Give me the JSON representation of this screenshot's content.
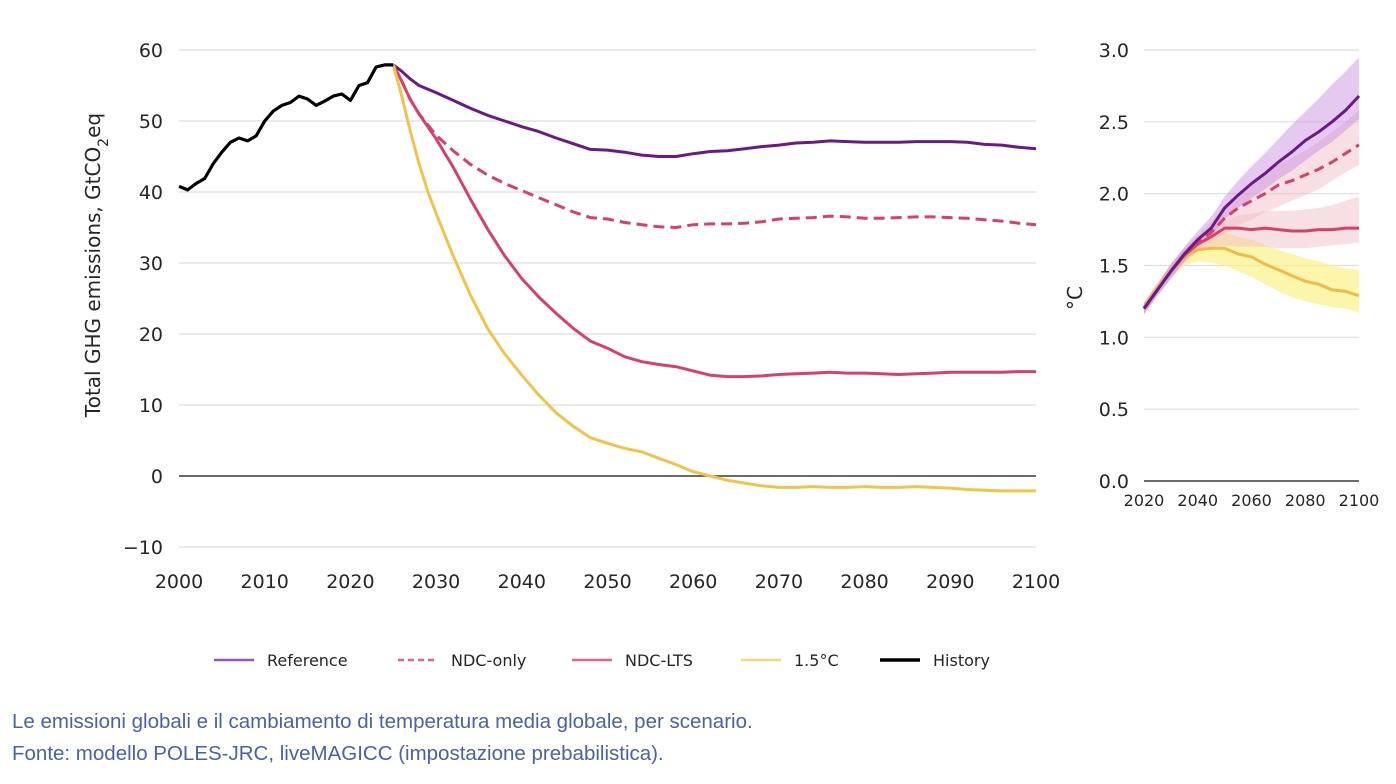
{
  "chart_data": [
    {
      "type": "line",
      "title": "",
      "xlabel": "",
      "ylabel": "Total GHG emissions, GtCO2eq",
      "ylabel_parts": {
        "pre": "Total GHG emissions, GtCO",
        "sub": "2",
        "post": "eq"
      },
      "xlim": [
        2000,
        2100
      ],
      "ylim": [
        -10,
        60
      ],
      "xticks": [
        2000,
        2010,
        2020,
        2030,
        2040,
        2050,
        2060,
        2070,
        2080,
        2090,
        2100
      ],
      "xtick_labels": [
        "2000",
        "2010",
        "2020",
        "2030",
        "2040",
        "2050",
        "2060",
        "2070",
        "2080",
        "2090",
        "2100"
      ],
      "yticks": [
        -10,
        0,
        10,
        20,
        30,
        40,
        50,
        60
      ],
      "ytick_labels": [
        "−10",
        "0",
        "10",
        "20",
        "30",
        "40",
        "50",
        "60"
      ],
      "grid": "horizontal",
      "zero_line": true,
      "series": [
        {
          "name": "History",
          "color": "#000000",
          "style": "solid",
          "x": [
            2000,
            2001,
            2002,
            2003,
            2004,
            2005,
            2006,
            2007,
            2008,
            2009,
            2010,
            2011,
            2012,
            2013,
            2014,
            2015,
            2016,
            2017,
            2018,
            2019,
            2020,
            2021,
            2022,
            2023,
            2024,
            2025
          ],
          "y": [
            40.8,
            40.3,
            41.2,
            41.9,
            44.0,
            45.6,
            47.0,
            47.6,
            47.2,
            47.9,
            50.0,
            51.4,
            52.2,
            52.6,
            53.5,
            53.1,
            52.2,
            52.8,
            53.5,
            53.8,
            52.9,
            55.0,
            55.4,
            57.6,
            57.9,
            57.9
          ]
        },
        {
          "name": "Reference",
          "color": "#6a1a86",
          "style": "solid",
          "x": [
            2025,
            2026,
            2027,
            2028,
            2030,
            2032,
            2034,
            2036,
            2038,
            2040,
            2042,
            2044,
            2046,
            2048,
            2050,
            2052,
            2054,
            2056,
            2058,
            2060,
            2062,
            2064,
            2066,
            2068,
            2070,
            2072,
            2074,
            2076,
            2078,
            2080,
            2082,
            2084,
            2086,
            2088,
            2090,
            2092,
            2094,
            2096,
            2098,
            2100
          ],
          "y": [
            57.9,
            57.0,
            55.9,
            55.0,
            54.0,
            52.9,
            51.8,
            50.8,
            50.0,
            49.2,
            48.5,
            47.6,
            46.8,
            46.0,
            45.9,
            45.6,
            45.2,
            45.0,
            45.0,
            45.4,
            45.7,
            45.8,
            46.1,
            46.4,
            46.6,
            46.9,
            47.0,
            47.2,
            47.1,
            47.0,
            47.0,
            47.0,
            47.1,
            47.1,
            47.1,
            47.0,
            46.7,
            46.6,
            46.3,
            46.1
          ]
        },
        {
          "name": "NDC-only",
          "color": "#d6416c",
          "style": "dashed",
          "x": [
            2025,
            2026,
            2027,
            2028,
            2030,
            2032,
            2034,
            2036,
            2038,
            2040,
            2042,
            2044,
            2046,
            2048,
            2050,
            2052,
            2054,
            2056,
            2058,
            2060,
            2062,
            2064,
            2066,
            2068,
            2070,
            2072,
            2074,
            2076,
            2078,
            2080,
            2082,
            2084,
            2086,
            2088,
            2090,
            2092,
            2094,
            2096,
            2098,
            2100
          ],
          "y": [
            57.9,
            55.6,
            53.0,
            51.0,
            48.0,
            45.8,
            43.9,
            42.4,
            41.2,
            40.2,
            39.2,
            38.2,
            37.2,
            36.4,
            36.2,
            35.7,
            35.4,
            35.1,
            35.0,
            35.4,
            35.5,
            35.5,
            35.6,
            35.8,
            36.2,
            36.3,
            36.4,
            36.6,
            36.5,
            36.3,
            36.3,
            36.4,
            36.5,
            36.5,
            36.4,
            36.3,
            36.1,
            35.9,
            35.6,
            35.4
          ]
        },
        {
          "name": "NDC-LTS",
          "color": "#d6416c",
          "style": "solid",
          "x": [
            2025,
            2026,
            2027,
            2028,
            2030,
            2032,
            2034,
            2036,
            2038,
            2040,
            2042,
            2044,
            2046,
            2048,
            2050,
            2052,
            2054,
            2056,
            2058,
            2060,
            2062,
            2064,
            2066,
            2068,
            2070,
            2072,
            2074,
            2076,
            2078,
            2080,
            2082,
            2084,
            2086,
            2088,
            2090,
            2092,
            2094,
            2096,
            2098,
            2100
          ],
          "y": [
            57.9,
            55.6,
            53.0,
            51.0,
            47.5,
            43.5,
            39.0,
            34.8,
            31.0,
            27.8,
            25.2,
            22.9,
            20.8,
            19.0,
            18.0,
            16.8,
            16.1,
            15.7,
            15.4,
            14.8,
            14.2,
            14.0,
            14.0,
            14.1,
            14.3,
            14.4,
            14.5,
            14.6,
            14.5,
            14.5,
            14.4,
            14.3,
            14.4,
            14.5,
            14.6,
            14.6,
            14.6,
            14.6,
            14.7,
            14.7
          ]
        },
        {
          "name": "1.5°C",
          "color": "#f0c34a",
          "style": "solid",
          "x": [
            2025,
            2026,
            2027,
            2028,
            2029,
            2030,
            2032,
            2034,
            2036,
            2038,
            2040,
            2042,
            2044,
            2046,
            2048,
            2050,
            2052,
            2054,
            2056,
            2058,
            2060,
            2062,
            2064,
            2066,
            2068,
            2070,
            2072,
            2074,
            2076,
            2078,
            2080,
            2082,
            2084,
            2086,
            2088,
            2090,
            2092,
            2094,
            2096,
            2098,
            2100
          ],
          "y": [
            57.9,
            53.5,
            48.5,
            44.0,
            40.2,
            37.0,
            31.0,
            25.5,
            20.8,
            17.2,
            14.2,
            11.4,
            8.9,
            7.0,
            5.4,
            4.6,
            3.9,
            3.4,
            2.5,
            1.6,
            0.6,
            0.0,
            -0.6,
            -1.0,
            -1.4,
            -1.6,
            -1.6,
            -1.5,
            -1.6,
            -1.6,
            -1.5,
            -1.6,
            -1.6,
            -1.5,
            -1.6,
            -1.7,
            -1.9,
            -2.0,
            -2.1,
            -2.1,
            -2.1
          ]
        }
      ]
    },
    {
      "type": "line",
      "title": "",
      "xlabel": "",
      "ylabel": "°C",
      "xlim": [
        2020,
        2100
      ],
      "ylim": [
        0,
        3.0
      ],
      "xticks": [
        2020,
        2040,
        2060,
        2080,
        2100
      ],
      "xtick_labels": [
        "2020",
        "2040",
        "2060",
        "2080",
        "2100"
      ],
      "yticks": [
        0.0,
        0.5,
        1.0,
        1.5,
        2.0,
        2.5,
        3.0
      ],
      "ytick_labels": [
        "0.0",
        "0.5",
        "1.0",
        "1.5",
        "2.0",
        "2.5",
        "3.0"
      ],
      "grid": "horizontal",
      "series": [
        {
          "name": "Reference",
          "color": "#6a1a86",
          "band_color": "#c888dd",
          "style": "solid",
          "x": [
            2020,
            2025,
            2030,
            2035,
            2040,
            2045,
            2050,
            2055,
            2060,
            2065,
            2070,
            2075,
            2080,
            2085,
            2090,
            2095,
            2100
          ],
          "y": [
            1.2,
            1.33,
            1.46,
            1.58,
            1.68,
            1.76,
            1.9,
            1.99,
            2.07,
            2.14,
            2.22,
            2.29,
            2.37,
            2.43,
            2.5,
            2.58,
            2.68
          ],
          "low": [
            1.16,
            1.29,
            1.41,
            1.53,
            1.63,
            1.7,
            1.82,
            1.9,
            1.97,
            2.03,
            2.1,
            2.16,
            2.23,
            2.3,
            2.36,
            2.44,
            2.52
          ],
          "high": [
            1.24,
            1.37,
            1.51,
            1.63,
            1.74,
            1.84,
            1.98,
            2.09,
            2.19,
            2.28,
            2.38,
            2.48,
            2.57,
            2.66,
            2.76,
            2.85,
            2.95
          ]
        },
        {
          "name": "NDC-only",
          "color": "#d6416c",
          "band_color": "#f0b8c4",
          "style": "dashed",
          "x": [
            2020,
            2025,
            2030,
            2035,
            2040,
            2045,
            2050,
            2055,
            2060,
            2065,
            2070,
            2075,
            2080,
            2085,
            2090,
            2095,
            2100
          ],
          "y": [
            1.2,
            1.33,
            1.46,
            1.57,
            1.66,
            1.73,
            1.83,
            1.9,
            1.95,
            2.0,
            2.06,
            2.09,
            2.13,
            2.17,
            2.22,
            2.28,
            2.34
          ],
          "low": [
            1.16,
            1.29,
            1.41,
            1.52,
            1.61,
            1.67,
            1.72,
            1.78,
            1.82,
            1.87,
            1.91,
            1.95,
            1.99,
            2.03,
            2.09,
            2.15,
            2.2
          ],
          "high": [
            1.24,
            1.37,
            1.51,
            1.62,
            1.71,
            1.8,
            1.92,
            2.0,
            2.07,
            2.14,
            2.2,
            2.25,
            2.3,
            2.36,
            2.43,
            2.5,
            2.58
          ]
        },
        {
          "name": "NDC-LTS",
          "color": "#d6416c",
          "band_color": "#f0b8c4",
          "style": "solid",
          "x": [
            2020,
            2025,
            2030,
            2035,
            2040,
            2045,
            2050,
            2055,
            2060,
            2065,
            2070,
            2075,
            2080,
            2085,
            2090,
            2095,
            2100
          ],
          "y": [
            1.2,
            1.33,
            1.46,
            1.57,
            1.65,
            1.7,
            1.76,
            1.76,
            1.75,
            1.76,
            1.75,
            1.74,
            1.74,
            1.75,
            1.75,
            1.76,
            1.76
          ],
          "low": [
            1.16,
            1.29,
            1.41,
            1.52,
            1.6,
            1.63,
            1.64,
            1.63,
            1.63,
            1.63,
            1.62,
            1.62,
            1.62,
            1.63,
            1.64,
            1.65,
            1.66
          ],
          "high": [
            1.24,
            1.37,
            1.51,
            1.62,
            1.7,
            1.76,
            1.82,
            1.85,
            1.86,
            1.88,
            1.88,
            1.88,
            1.89,
            1.9,
            1.92,
            1.95,
            1.98
          ]
        },
        {
          "name": "1.5°C",
          "color": "#f0b94a",
          "band_color": "#fbf28a",
          "style": "solid",
          "x": [
            2020,
            2025,
            2030,
            2035,
            2040,
            2045,
            2050,
            2055,
            2060,
            2065,
            2070,
            2075,
            2080,
            2085,
            2090,
            2095,
            2100
          ],
          "y": [
            1.21,
            1.34,
            1.46,
            1.56,
            1.61,
            1.62,
            1.62,
            1.58,
            1.56,
            1.51,
            1.47,
            1.43,
            1.39,
            1.37,
            1.33,
            1.32,
            1.29
          ],
          "low": [
            1.17,
            1.3,
            1.41,
            1.5,
            1.53,
            1.52,
            1.5,
            1.46,
            1.42,
            1.37,
            1.32,
            1.28,
            1.25,
            1.23,
            1.21,
            1.2,
            1.17
          ],
          "high": [
            1.25,
            1.38,
            1.51,
            1.61,
            1.68,
            1.71,
            1.73,
            1.7,
            1.68,
            1.64,
            1.61,
            1.58,
            1.55,
            1.53,
            1.5,
            1.48,
            1.47
          ]
        }
      ]
    }
  ],
  "legend": {
    "placement": "bottom-center",
    "items": [
      {
        "label": "Reference",
        "color": "#9b54b4",
        "style": "solid"
      },
      {
        "label": "NDC-only",
        "color": "#e0648c",
        "style": "dashed"
      },
      {
        "label": "NDC-LTS",
        "color": "#e0648c",
        "style": "solid"
      },
      {
        "label": "1.5°C",
        "color": "#f4d77c",
        "style": "solid"
      },
      {
        "label": "History",
        "color": "#000000",
        "style": "solid"
      }
    ]
  },
  "caption": {
    "line1": "Le emissioni globali e il cambiamento di temperatura media globale, per scenario.",
    "line2": "Fonte: modello POLES-JRC, liveMAGICC (impostazione prebabilistica).",
    "color": "#4a62a6"
  }
}
